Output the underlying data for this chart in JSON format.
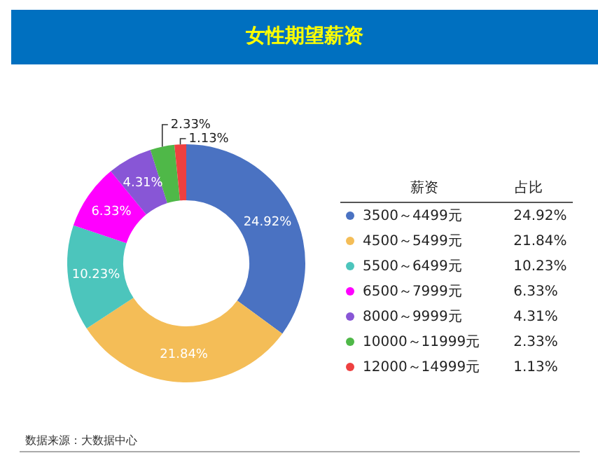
{
  "chart_data": {
    "type": "donut",
    "title": "女性期望薪资",
    "categories": [
      "3500～4499元",
      "4500～5499元",
      "5500～6499元",
      "6500～7999元",
      "8000～9999元",
      "10000～11999元",
      "12000～14999元"
    ],
    "values": [
      24.92,
      21.84,
      10.23,
      6.33,
      4.31,
      2.33,
      1.13
    ],
    "colors": [
      "#4a72c2",
      "#f4bd57",
      "#4cc5bc",
      "#ff00ff",
      "#8856d6",
      "#4fb848",
      "#ee4040"
    ],
    "value_labels": [
      "24.92%",
      "21.84%",
      "10.23%",
      "6.33%",
      "4.31%",
      "2.33%",
      "1.13%"
    ],
    "legend": "right",
    "legend_title": "薪资",
    "annotations": [
      "占比",
      "数据来源：大数据中心"
    ]
  }
}
